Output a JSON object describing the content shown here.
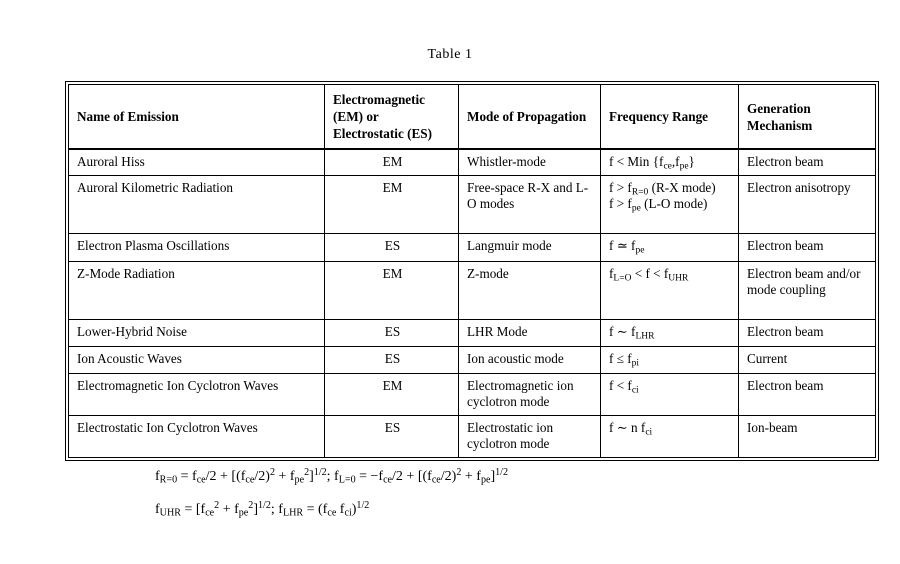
{
  "page": {
    "title": "Table 1"
  },
  "colors": {
    "text": "#000000",
    "background": "#ffffff",
    "border": "#000000"
  },
  "table": {
    "headers": [
      "Name of Emission",
      "Electromagnetic (EM) or Electrostatic (ES)",
      "Mode of Propagation",
      "Frequency Range",
      "Generation Mechanism"
    ],
    "rows": [
      {
        "name": "Auroral Hiss",
        "em_es": "EM",
        "mode": "Whistler-mode",
        "freq": [
          {
            "t": "f < Min {f"
          },
          {
            "t": "ce",
            "s": "sub"
          },
          {
            "t": ",f"
          },
          {
            "t": "pe",
            "s": "sub"
          },
          {
            "t": "}"
          }
        ],
        "mechanism": "Electron beam"
      },
      {
        "name": "Auroral Kilometric Radiation",
        "em_es": "EM",
        "mode": "Free-space R-X and L-O modes",
        "freq": [
          {
            "t": "f > f"
          },
          {
            "t": "R=0",
            "s": "sub"
          },
          {
            "t": " (R-X mode)"
          },
          {
            "br": true
          },
          {
            "t": "f > f"
          },
          {
            "t": "pe",
            "s": "sub"
          },
          {
            "t": " (L-O mode)"
          }
        ],
        "mechanism": "Electron anisotropy"
      },
      {
        "name": "Electron Plasma Oscillations",
        "em_es": "ES",
        "mode": "Langmuir mode",
        "freq": [
          {
            "t": "f ≃ f"
          },
          {
            "t": "pe",
            "s": "sub"
          }
        ],
        "mechanism": "Electron beam"
      },
      {
        "name": "Z-Mode Radiation",
        "em_es": "EM",
        "mode": "Z-mode",
        "freq": [
          {
            "t": "f"
          },
          {
            "t": "L=O",
            "s": "sub"
          },
          {
            "t": " < f < f"
          },
          {
            "t": "UHR",
            "s": "sub"
          }
        ],
        "mechanism": "Electron beam and/or mode coupling"
      },
      {
        "name": "Lower-Hybrid Noise",
        "em_es": "ES",
        "mode": "LHR Mode",
        "freq": [
          {
            "t": "f ∼ f"
          },
          {
            "t": "LHR",
            "s": "sub"
          }
        ],
        "mechanism": "Electron beam"
      },
      {
        "name": "Ion Acoustic Waves",
        "em_es": "ES",
        "mode": "Ion acoustic mode",
        "freq": [
          {
            "t": "f ≤ f"
          },
          {
            "t": "pi",
            "s": "sub"
          }
        ],
        "mechanism": "Current"
      },
      {
        "name": "Electromagnetic Ion Cyclotron Waves",
        "em_es": "EM",
        "mode": "Electromagnetic ion cyclotron mode",
        "freq": [
          {
            "t": "f < f"
          },
          {
            "t": "ci",
            "s": "sub"
          }
        ],
        "mechanism": "Electron beam"
      },
      {
        "name": "Electrostatic Ion Cyclotron Waves",
        "em_es": "ES",
        "mode": "Electrostatic ion cyclotron mode",
        "freq": [
          {
            "t": "f ∼ n f"
          },
          {
            "t": "ci",
            "s": "sub"
          }
        ],
        "mechanism": "Ion-beam"
      }
    ]
  },
  "formulas": {
    "line1": [
      {
        "t": "f"
      },
      {
        "t": "R=0",
        "s": "sub"
      },
      {
        "t": " = f"
      },
      {
        "t": "ce",
        "s": "sub"
      },
      {
        "t": "/2 + [(f"
      },
      {
        "t": "ce",
        "s": "sub"
      },
      {
        "t": "/2)"
      },
      {
        "t": "2",
        "s": "sup"
      },
      {
        "t": " + f"
      },
      {
        "t": "pe",
        "s": "sub"
      },
      {
        "t": "2",
        "s": "sup"
      },
      {
        "t": "]"
      },
      {
        "t": "1/2",
        "s": "sup"
      },
      {
        "t": "; f"
      },
      {
        "t": "L=0",
        "s": "sub"
      },
      {
        "t": " = −f"
      },
      {
        "t": "ce",
        "s": "sub"
      },
      {
        "t": "/2 + [(f"
      },
      {
        "t": "ce",
        "s": "sub"
      },
      {
        "t": "/2)"
      },
      {
        "t": "2",
        "s": "sup"
      },
      {
        "t": " + f"
      },
      {
        "t": "pe",
        "s": "sub"
      },
      {
        "t": "]"
      },
      {
        "t": "1/2",
        "s": "sup"
      }
    ],
    "line2": [
      {
        "t": "f"
      },
      {
        "t": "UHR",
        "s": "sub"
      },
      {
        "t": " = [f"
      },
      {
        "t": "ce",
        "s": "sub"
      },
      {
        "t": "2",
        "s": "sup"
      },
      {
        "t": " + f"
      },
      {
        "t": "pe",
        "s": "sub"
      },
      {
        "t": "2",
        "s": "sup"
      },
      {
        "t": "]"
      },
      {
        "t": "1/2",
        "s": "sup"
      },
      {
        "t": "; f"
      },
      {
        "t": "LHR",
        "s": "sub"
      },
      {
        "t": " = (f"
      },
      {
        "t": "ce",
        "s": "sub"
      },
      {
        "t": " f"
      },
      {
        "t": "ci",
        "s": "sub"
      },
      {
        "t": ")"
      },
      {
        "t": "1/2",
        "s": "sup"
      }
    ]
  }
}
